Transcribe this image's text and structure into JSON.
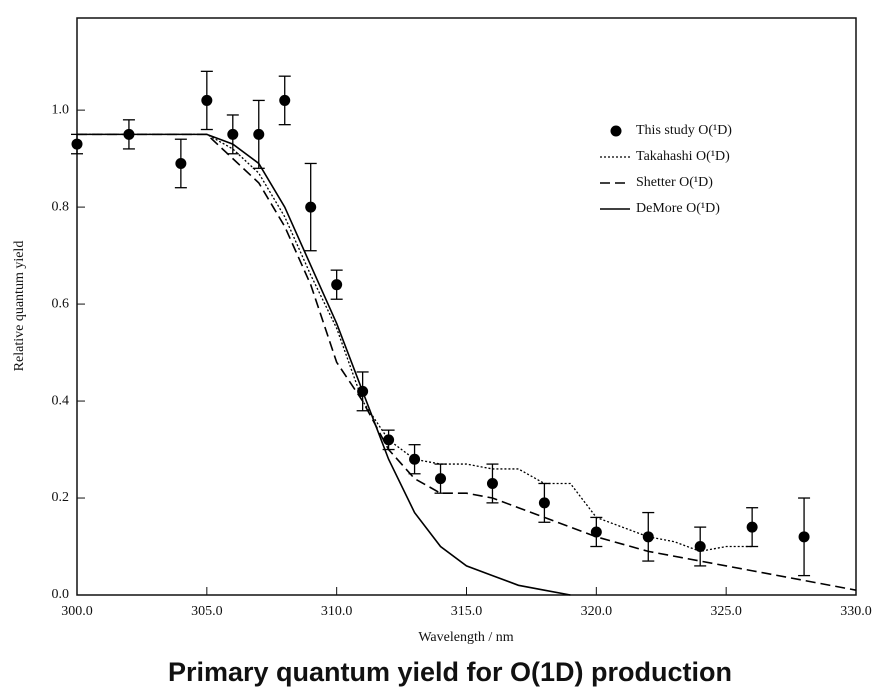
{
  "chart_data": {
    "type": "line",
    "title": "Primary quantum yield for O(1D) production",
    "xlabel": "Wavelength / nm",
    "ylabel": "Relative quantum yield",
    "xlim": [
      300,
      330
    ],
    "ylim": [
      0,
      1.19
    ],
    "xticks": [
      {
        "value": 300,
        "label": "300.0"
      },
      {
        "value": 305,
        "label": "305.0"
      },
      {
        "value": 310,
        "label": "310.0"
      },
      {
        "value": 315,
        "label": "315.0"
      },
      {
        "value": 320,
        "label": "320.0"
      },
      {
        "value": 325,
        "label": "325.0"
      },
      {
        "value": 330,
        "label": "330.0"
      }
    ],
    "yticks": [
      {
        "value": 0,
        "label": "0.0"
      },
      0.2,
      0.4,
      0.6,
      0.8,
      {
        "value": 1,
        "label": "1.0"
      }
    ],
    "legend": "upper right",
    "series": [
      {
        "name": "This study O(¹D)",
        "style": "points",
        "color": "#000000",
        "x": [
          300,
          302,
          304,
          305,
          306,
          307,
          308,
          309,
          310,
          311,
          312,
          313,
          314,
          316,
          318,
          320,
          322,
          324,
          326,
          328
        ],
        "values": [
          0.93,
          0.95,
          0.89,
          1.02,
          0.95,
          0.95,
          1.02,
          0.8,
          0.64,
          0.42,
          0.32,
          0.28,
          0.24,
          0.23,
          0.19,
          0.13,
          0.12,
          0.1,
          0.14,
          0.12
        ],
        "errors": [
          0.02,
          0.03,
          0.05,
          0.06,
          0.04,
          0.07,
          0.05,
          0.09,
          0.03,
          0.04,
          0.02,
          0.03,
          0.03,
          0.04,
          0.04,
          0.03,
          0.05,
          0.04,
          0.04,
          0.08
        ]
      },
      {
        "name": "Takahashi O(¹D)",
        "style": "dotted",
        "color": "#000000",
        "x": [
          300,
          305,
          306,
          307,
          308,
          309,
          310,
          311,
          312,
          313,
          314,
          315,
          316,
          317,
          318,
          319,
          320,
          321,
          322,
          323,
          324,
          325,
          326
        ],
        "values": [
          0.95,
          0.95,
          0.92,
          0.87,
          0.78,
          0.66,
          0.55,
          0.4,
          0.32,
          0.28,
          0.27,
          0.27,
          0.26,
          0.26,
          0.23,
          0.23,
          0.16,
          0.14,
          0.12,
          0.11,
          0.09,
          0.1,
          0.1
        ]
      },
      {
        "name": "Shetter O(¹D)",
        "style": "dashed",
        "color": "#000000",
        "x": [
          300,
          305,
          306,
          307,
          308,
          309,
          310,
          311,
          312,
          313,
          314,
          315,
          316,
          317,
          318,
          320,
          322,
          324,
          326,
          328,
          330
        ],
        "values": [
          0.95,
          0.95,
          0.9,
          0.85,
          0.76,
          0.64,
          0.48,
          0.4,
          0.3,
          0.24,
          0.21,
          0.21,
          0.2,
          0.18,
          0.16,
          0.12,
          0.09,
          0.07,
          0.05,
          0.03,
          0.01
        ]
      },
      {
        "name": "DeMore O(¹D)",
        "style": "solid",
        "color": "#000000",
        "x": [
          300,
          305,
          306,
          307,
          308,
          309,
          310,
          311,
          312,
          313,
          314,
          315,
          316,
          317,
          318,
          319
        ],
        "values": [
          0.95,
          0.95,
          0.93,
          0.89,
          0.8,
          0.68,
          0.56,
          0.42,
          0.28,
          0.17,
          0.1,
          0.06,
          0.04,
          0.02,
          0.01,
          0.0
        ]
      }
    ]
  }
}
